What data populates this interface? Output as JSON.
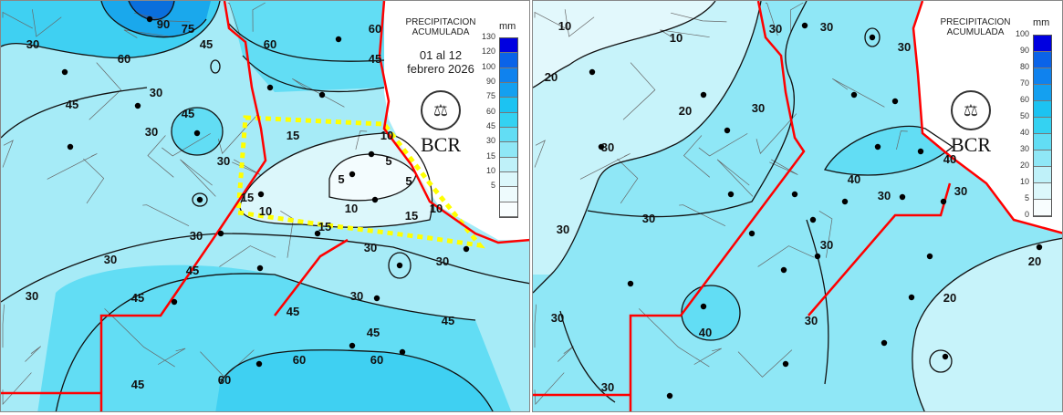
{
  "left_map": {
    "legend": {
      "title_line1": "PRECIPITACION",
      "title_line2": "ACUMULADA",
      "date_line1": "01 al 12",
      "date_line2": "febrero 2026",
      "unit": "mm",
      "ticks": [
        "130",
        "120",
        "100",
        "90",
        "75",
        "60",
        "45",
        "30",
        "15",
        "10",
        "5"
      ],
      "colors": [
        "#0000e0",
        "#0a63e8",
        "#0f82ee",
        "#14a0f0",
        "#1cc3f2",
        "#34d2f2",
        "#62ddf4",
        "#8fe7f6",
        "#bff1f9",
        "#dcf7fb",
        "#eefbfd",
        "#f8fdfe"
      ],
      "logo_text": "BCR"
    },
    "contour_labels": [
      "30",
      "90",
      "75",
      "45",
      "60",
      "60",
      "45",
      "60",
      "45",
      "30",
      "45",
      "30",
      "30",
      "15",
      "10",
      "5",
      "5",
      "5",
      "15",
      "10",
      "10",
      "15",
      "10",
      "15",
      "30",
      "30",
      "30",
      "30",
      "30",
      "45",
      "45",
      "30",
      "45",
      "45",
      "45",
      "60",
      "60",
      "60",
      "45"
    ],
    "highlight_color": "#ffff00",
    "border_color": "#ff0000"
  },
  "right_map": {
    "legend": {
      "title_line1": "PRECIPITACION",
      "title_line2": "ACUMULADA",
      "unit": "mm",
      "ticks": [
        "100",
        "90",
        "80",
        "70",
        "60",
        "50",
        "40",
        "30",
        "20",
        "10",
        "5",
        "0"
      ],
      "colors": [
        "#0000e0",
        "#0a63e8",
        "#0f82ee",
        "#14a0f0",
        "#1cc3f2",
        "#34d2f2",
        "#62ddf4",
        "#8fe7f6",
        "#bff1f9",
        "#dcf7fb",
        "#f8fdfe"
      ],
      "logo_text": "BCR"
    },
    "contour_labels": [
      "10",
      "10",
      "30",
      "30",
      "30",
      "20",
      "20",
      "30",
      "30",
      "40",
      "40",
      "30",
      "30",
      "30",
      "30",
      "30",
      "30",
      "20",
      "20",
      "40",
      "30",
      "30"
    ],
    "border_color": "#ff0000"
  }
}
